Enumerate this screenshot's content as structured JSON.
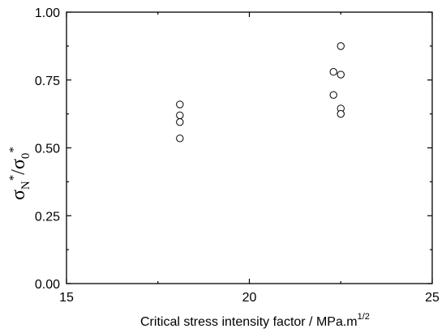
{
  "chart_data": {
    "type": "scatter",
    "xlabel": "Critical stress intensity factor / MPa.m",
    "xlabel_superscript": "1/2",
    "ylabel_parts": {
      "sym1": "σ",
      "sub1": "N",
      "sup1": "*",
      "slash": "/",
      "sym2": "σ",
      "sub2": "0",
      "sup2": "*"
    },
    "xlim": [
      15,
      25
    ],
    "ylim": [
      0.0,
      1.0
    ],
    "x_ticks": [
      "15",
      "20",
      "25"
    ],
    "y_ticks": [
      "0.00",
      "0.25",
      "0.50",
      "0.75",
      "1.00"
    ],
    "x_tick_values": [
      15,
      20,
      25
    ],
    "y_tick_values": [
      0.0,
      0.25,
      0.5,
      0.75,
      1.0
    ],
    "grid": false,
    "marker": "open-circle",
    "points": [
      {
        "x": 18.1,
        "y": 0.66
      },
      {
        "x": 18.1,
        "y": 0.62
      },
      {
        "x": 18.1,
        "y": 0.595
      },
      {
        "x": 18.1,
        "y": 0.535
      },
      {
        "x": 22.5,
        "y": 0.875
      },
      {
        "x": 22.3,
        "y": 0.78
      },
      {
        "x": 22.5,
        "y": 0.77
      },
      {
        "x": 22.3,
        "y": 0.695
      },
      {
        "x": 22.5,
        "y": 0.645
      },
      {
        "x": 22.5,
        "y": 0.625
      }
    ]
  }
}
